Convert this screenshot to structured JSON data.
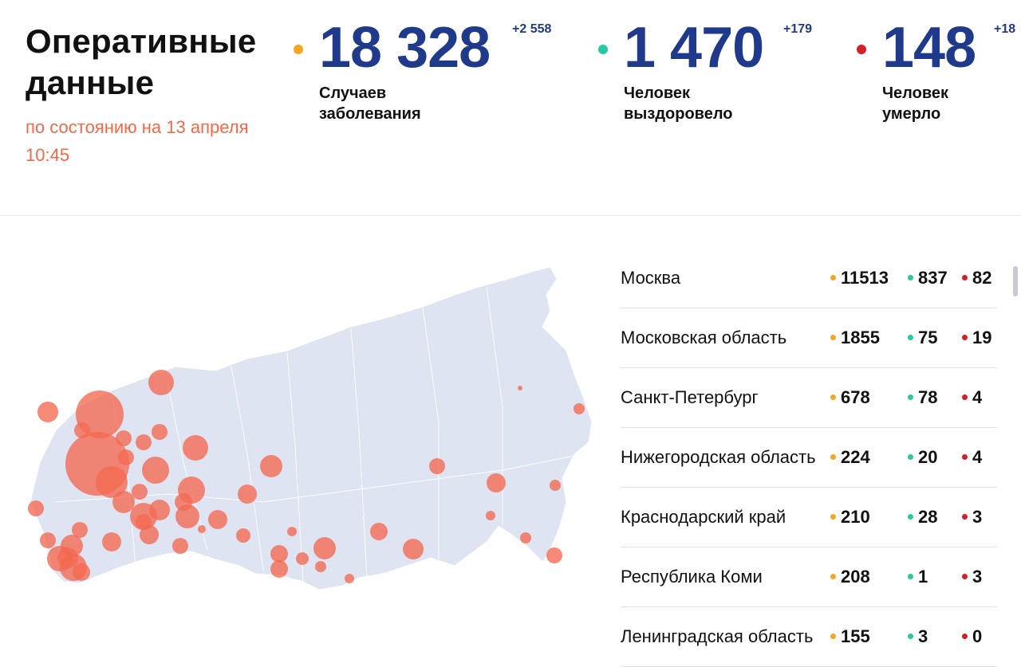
{
  "header": {
    "title_line1": "Оперативные",
    "title_line2": "данные",
    "subtitle": "по состоянию на 13 апреля 10:45"
  },
  "stats": [
    {
      "value": "18 328",
      "delta": "+2 558",
      "label_line1": "Случаев",
      "label_line2": "заболевания",
      "color": "#f5a623"
    },
    {
      "value": "1 470",
      "delta": "+179",
      "label_line1": "Человек",
      "label_line2": "выздоровело",
      "color": "#27c9a5"
    },
    {
      "value": "148",
      "delta": "+18",
      "label_line1": "Человек",
      "label_line2": "умерло",
      "color": "#d0212a"
    }
  ],
  "regions": [
    {
      "name": "Москва",
      "cases": "11513",
      "recovered": "837",
      "deaths": "82"
    },
    {
      "name": "Московская область",
      "cases": "1855",
      "recovered": "75",
      "deaths": "19"
    },
    {
      "name": "Санкт-Петербург",
      "cases": "678",
      "recovered": "78",
      "deaths": "4"
    },
    {
      "name": "Нижегородская область",
      "cases": "224",
      "recovered": "20",
      "deaths": "4"
    },
    {
      "name": "Краснодарский край",
      "cases": "210",
      "recovered": "28",
      "deaths": "3"
    },
    {
      "name": "Республика Коми",
      "cases": "208",
      "recovered": "1",
      "deaths": "3"
    },
    {
      "name": "Ленинградская область",
      "cases": "155",
      "recovered": "3",
      "deaths": "0"
    }
  ],
  "colors": {
    "accent_blue": "#1f3a8a",
    "subtitle_orange": "#f2694a",
    "map_land": "#dfe4f3",
    "map_marker": "#f4694f"
  },
  "icons": {
    "cases_dot": "orange-dot-icon",
    "recovered_dot": "teal-dot-icon",
    "deaths_dot": "red-dot-icon"
  }
}
